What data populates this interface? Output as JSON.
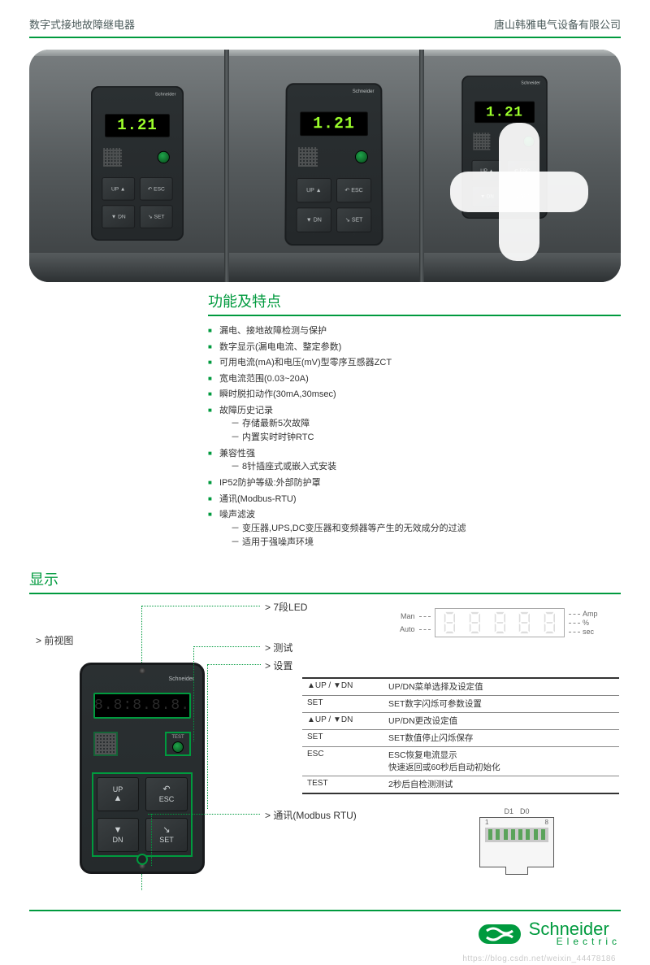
{
  "colors": {
    "brand_green": "#009a3e",
    "text": "#333333",
    "muted": "#666666",
    "led_on": "#9cff2b"
  },
  "header": {
    "left": "数字式接地故障继电器",
    "right": "唐山韩雅电气设备有限公司"
  },
  "hero": {
    "led_value": "1.21",
    "buttons": [
      "UP ▲",
      "↶ ESC",
      "▼ DN",
      "↘ SET"
    ]
  },
  "features": {
    "title": "功能及特点",
    "items": [
      {
        "text": "漏电、接地故障检测与保护"
      },
      {
        "text": "数字显示(漏电电流、整定参数)"
      },
      {
        "text": "可用电流(mA)和电压(mV)型零序互感器ZCT"
      },
      {
        "text": "宽电流范围(0.03~20A)"
      },
      {
        "text": "瞬时脱扣动作(30mA,30msec)"
      },
      {
        "text": "故障历史记录",
        "sub": [
          "－ 存储最新5次故障",
          "－ 内置实时时钟RTC"
        ]
      },
      {
        "text": "兼容性强",
        "sub": [
          "－ 8针插座式或嵌入式安装"
        ]
      },
      {
        "text": "IP52防护等级:外部防护罩"
      },
      {
        "text": "通讯(Modbus-RTU)"
      },
      {
        "text": "噪声滤波",
        "sub": [
          "－ 变压器,UPS,DC变压器和变频器等产生的无效成分的过滤",
          "－ 适用于强噪声环境"
        ]
      }
    ]
  },
  "display": {
    "title": "显示",
    "front_label": "> 前视图",
    "callouts": {
      "led": "> 7段LED",
      "test": "> 测试",
      "settings": "> 设置",
      "comm": "> 通讯(Modbus RTU)"
    },
    "seg_legend": {
      "left": [
        "Man",
        "Auto"
      ],
      "right": [
        "Amp",
        "%",
        "sec"
      ]
    },
    "device": {
      "brand": "Schneider",
      "led_placeholder": "8.8:8.8.8.",
      "test_label": "TEST",
      "buttons": [
        {
          "name": "UP",
          "arrow": "▲"
        },
        {
          "name": "ESC",
          "arrow": "↶"
        },
        {
          "name": "DN",
          "arrow": "▼"
        },
        {
          "name": "SET",
          "arrow": "↘"
        }
      ]
    },
    "settings_table": [
      {
        "k": "▲UP / ▼DN",
        "v": "UP/DN菜单选择及设定值"
      },
      {
        "k": "SET",
        "v": "SET数字闪烁可参数设置"
      },
      {
        "k": "▲UP / ▼DN",
        "v": "UP/DN更改设定值"
      },
      {
        "k": "SET",
        "v": "SET数值停止闪烁保存"
      },
      {
        "k": "ESC",
        "v": "ESC恢复电流显示\n快速返回或60秒后自动初始化"
      },
      {
        "k": "TEST",
        "v": "2秒后自检测测试"
      }
    ],
    "rj45": {
      "d_labels": [
        "D1",
        "D0"
      ],
      "pin_first": "1",
      "pin_last": "8",
      "pin_count": 8
    }
  },
  "footer": {
    "brand_name": "Schneider",
    "brand_sub": "Electric"
  },
  "watermark": "https://blog.csdn.net/weixin_44478186"
}
